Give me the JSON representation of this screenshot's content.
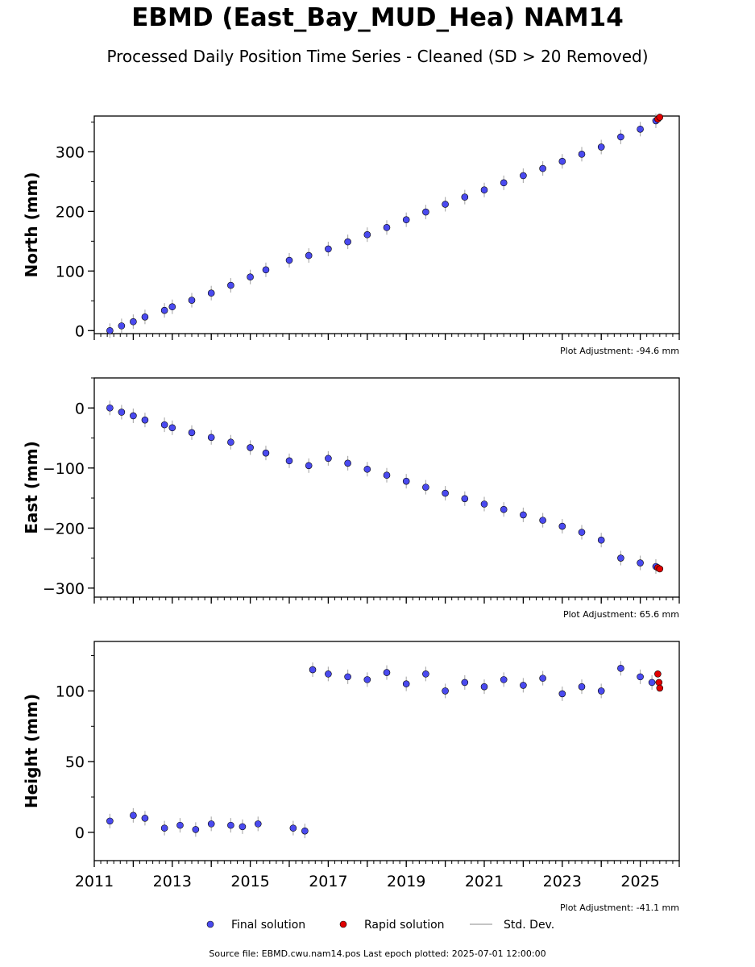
{
  "header": {
    "title": "EBMD (East_Bay_MUD_Hea) NAM14",
    "subtitle": "Processed Daily Position Time Series - Cleaned (SD > 20 Removed)"
  },
  "footer": {
    "source": "Source file: EBMD.cwu.nam14.pos  Last epoch plotted: 2025-07-01 12:00:00"
  },
  "legend": {
    "final_label": "Final solution",
    "rapid_label": "Rapid solution",
    "std_label": "Std. Dev."
  },
  "colors": {
    "final": "#4a4aef",
    "rapid": "#e00000",
    "std": "#b0b0b0",
    "marker_edge": "#000000"
  },
  "chart_data": [
    {
      "type": "scatter",
      "ylabel": "North (mm)",
      "adjustment": "Plot Adjustment: -94.6 mm",
      "xlim": [
        2011,
        2026
      ],
      "ylim": [
        -5,
        360
      ],
      "yticks": [
        0,
        100,
        200,
        300
      ],
      "ytick_labels": [
        "0",
        "100",
        "200",
        "300"
      ],
      "series": [
        {
          "name": "Final solution",
          "x": [
            2011.4,
            2011.7,
            2012.0,
            2012.3,
            2012.8,
            2013.0,
            2013.5,
            2014.0,
            2014.5,
            2015.0,
            2015.4,
            2016.0,
            2016.5,
            2017.0,
            2017.5,
            2018.0,
            2018.5,
            2019.0,
            2019.5,
            2020.0,
            2020.5,
            2021.0,
            2021.5,
            2022.0,
            2022.5,
            2023.0,
            2023.5,
            2024.0,
            2024.5,
            2025.0,
            2025.4
          ],
          "y": [
            0,
            8,
            15,
            23,
            34,
            40,
            51,
            63,
            76,
            90,
            102,
            118,
            126,
            137,
            149,
            161,
            173,
            186,
            199,
            212,
            224,
            236,
            248,
            260,
            272,
            284,
            296,
            308,
            325,
            338,
            352
          ]
        },
        {
          "name": "Rapid solution",
          "x": [
            2025.45,
            2025.5
          ],
          "y": [
            355,
            358
          ]
        }
      ]
    },
    {
      "type": "scatter",
      "ylabel": "East (mm)",
      "adjustment": "Plot Adjustment: 65.6 mm",
      "xlim": [
        2011,
        2026
      ],
      "ylim": [
        -315,
        50
      ],
      "yticks": [
        0,
        -100,
        -200,
        -300
      ],
      "ytick_labels": [
        "0",
        "−100",
        "−200",
        "−300"
      ],
      "series": [
        {
          "name": "Final solution",
          "x": [
            2011.4,
            2011.7,
            2012.0,
            2012.3,
            2012.8,
            2013.0,
            2013.5,
            2014.0,
            2014.5,
            2015.0,
            2015.4,
            2016.0,
            2016.5,
            2017.0,
            2017.5,
            2018.0,
            2018.5,
            2019.0,
            2019.5,
            2020.0,
            2020.5,
            2021.0,
            2021.5,
            2022.0,
            2022.5,
            2023.0,
            2023.5,
            2024.0,
            2024.5,
            2025.0,
            2025.4
          ],
          "y": [
            0,
            -7,
            -13,
            -20,
            -28,
            -33,
            -41,
            -49,
            -57,
            -66,
            -75,
            -88,
            -96,
            -84,
            -92,
            -102,
            -112,
            -122,
            -132,
            -142,
            -151,
            -160,
            -169,
            -178,
            -187,
            -197,
            -207,
            -220,
            -250,
            -258,
            -264
          ]
        },
        {
          "name": "Rapid solution",
          "x": [
            2025.45,
            2025.5
          ],
          "y": [
            -266,
            -268
          ]
        }
      ]
    },
    {
      "type": "scatter",
      "ylabel": "Height (mm)",
      "adjustment": "Plot Adjustment: -41.1 mm",
      "xlim": [
        2011,
        2026
      ],
      "ylim": [
        -20,
        135
      ],
      "yticks": [
        0,
        50,
        100
      ],
      "ytick_labels": [
        "0",
        "50",
        "100"
      ],
      "xticks": [
        2011,
        2013,
        2015,
        2017,
        2019,
        2021,
        2023,
        2025
      ],
      "xtick_labels": [
        "2011",
        "2013",
        "2015",
        "2017",
        "2019",
        "2021",
        "2023",
        "2025"
      ],
      "series": [
        {
          "name": "Final solution",
          "x": [
            2011.4,
            2012.0,
            2012.3,
            2012.8,
            2013.2,
            2013.6,
            2014.0,
            2014.5,
            2014.8,
            2015.2,
            2016.1,
            2016.4,
            2016.6,
            2017.0,
            2017.5,
            2018.0,
            2018.5,
            2019.0,
            2019.5,
            2020.0,
            2020.5,
            2021.0,
            2021.5,
            2022.0,
            2022.5,
            2023.0,
            2023.5,
            2024.0,
            2024.5,
            2025.0,
            2025.3
          ],
          "y": [
            8,
            12,
            10,
            3,
            5,
            2,
            6,
            5,
            4,
            6,
            3,
            1,
            115,
            112,
            110,
            108,
            113,
            105,
            112,
            100,
            106,
            103,
            108,
            104,
            109,
            98,
            103,
            100,
            116,
            110,
            106
          ]
        },
        {
          "name": "Rapid solution",
          "x": [
            2025.45,
            2025.48,
            2025.5
          ],
          "y": [
            112,
            106,
            102
          ]
        }
      ]
    }
  ]
}
